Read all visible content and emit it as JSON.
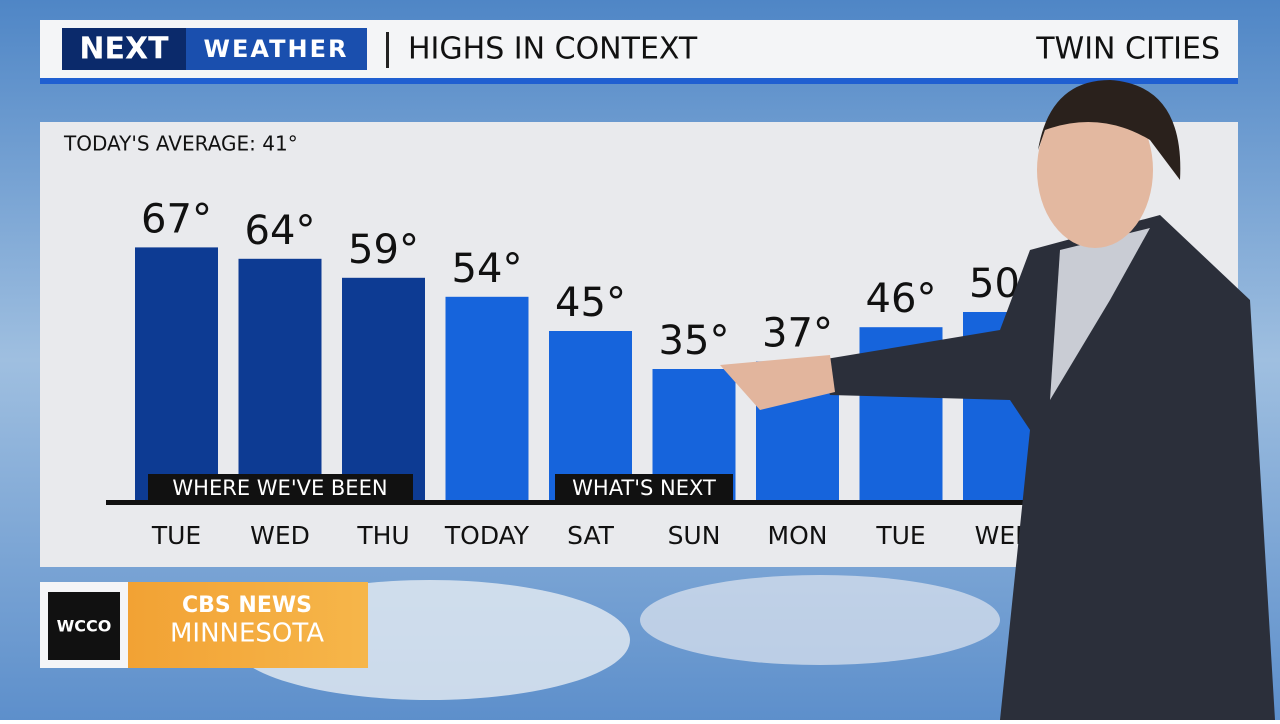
{
  "header": {
    "logo": "NEXT",
    "brand": "WEATHER",
    "title": "HIGHS IN CONTEXT",
    "location": "TWIN CITIES"
  },
  "branding": {
    "station": "WCCO",
    "network": "CBS NEWS",
    "region": "MINNESOTA"
  },
  "chart_data": {
    "type": "bar",
    "subtitle": "TODAY'S AVERAGE: 41°",
    "annotations": [
      "WHERE WE'VE BEEN",
      "WHAT'S NEXT"
    ],
    "categories": [
      "TUE",
      "WED",
      "THU",
      "TODAY",
      "SAT",
      "SUN",
      "MON",
      "TUE",
      "WED"
    ],
    "values": [
      67,
      64,
      59,
      54,
      45,
      35,
      37,
      46,
      50
    ],
    "value_labels": [
      "67°",
      "64°",
      "59°",
      "54°",
      "45°",
      "35°",
      "37°",
      "46°",
      "50°"
    ],
    "colors": [
      "#0d3b93",
      "#0d3b93",
      "#0d3b93",
      "#1664dc",
      "#1664dc",
      "#1664dc",
      "#1664dc",
      "#1664dc",
      "#1664dc"
    ]
  }
}
